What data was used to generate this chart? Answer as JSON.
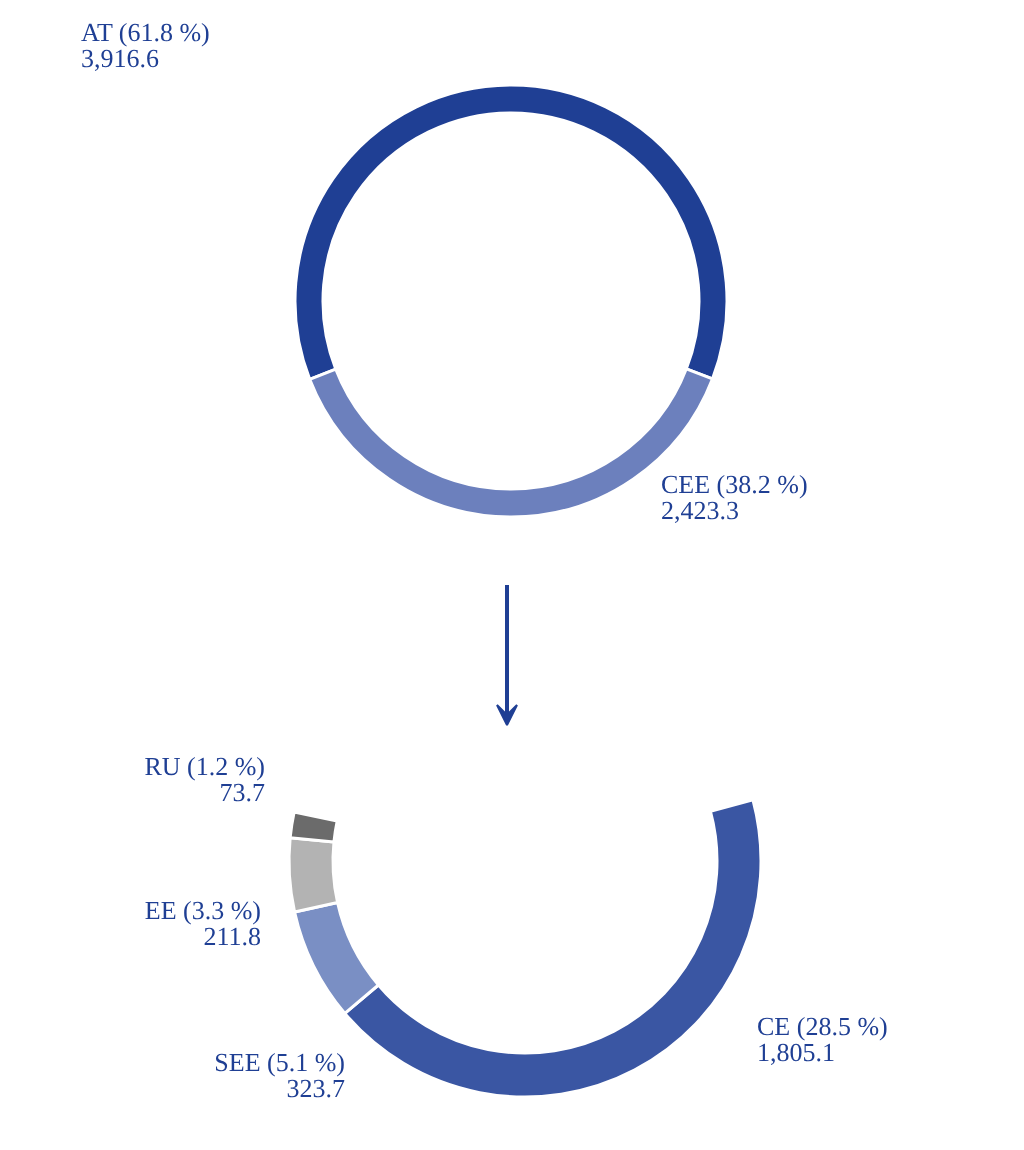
{
  "chart_data": [
    {
      "type": "donut",
      "categories": [
        "AT (61.8 %)",
        "CEE (38.2 %)"
      ],
      "values": [
        3916.6,
        2423.3
      ],
      "value_labels": [
        "3,916.6",
        "2,423.3"
      ],
      "colors": [
        "#1f3f94",
        "#6c80bd"
      ]
    },
    {
      "type": "donut",
      "categories": [
        "CE (28.5 %)",
        "SEE (5.1 %)",
        "EE (3.3 %)",
        "RU (1.2 %)"
      ],
      "values": [
        1805.1,
        323.7,
        211.8,
        73.7
      ],
      "value_labels": [
        "1,805.1",
        "323.7",
        "211.8",
        "73.7"
      ],
      "colors": [
        "#3a56a3",
        "#7a8fc4",
        "#b3b3b3",
        "#6b6b6b"
      ]
    }
  ]
}
